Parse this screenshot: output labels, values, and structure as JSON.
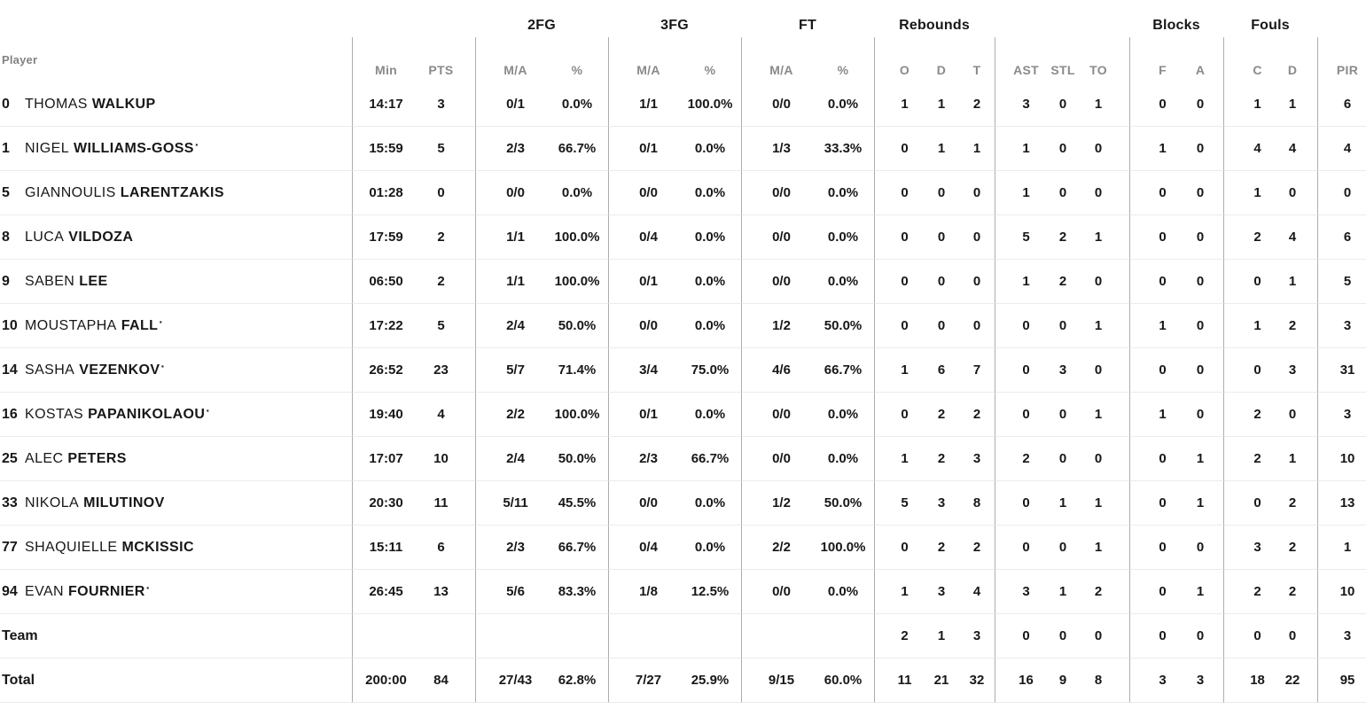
{
  "colors": {
    "text": "#171717",
    "muted_header": "#8a8a8a",
    "column_line": "#adadad",
    "row_divider": "#ebebeb",
    "background": "#ffffff"
  },
  "table": {
    "player_header": "Player",
    "starter_mark": "·",
    "group_headers": [
      "2FG",
      "3FG",
      "FT",
      "Rebounds",
      "Blocks",
      "Fouls"
    ],
    "sub_headers": [
      "Min",
      "PTS",
      "M/A",
      "%",
      "M/A",
      "%",
      "M/A",
      "%",
      "O",
      "D",
      "T",
      "AST",
      "STL",
      "TO",
      "F",
      "A",
      "C",
      "D",
      "PIR"
    ],
    "rows": [
      {
        "type": "player",
        "number": "0",
        "first": "THOMAS",
        "last": "WALKUP",
        "starter": false,
        "stats": [
          "14:17",
          "3",
          "0/1",
          "0.0%",
          "1/1",
          "100.0%",
          "0/0",
          "0.0%",
          "1",
          "1",
          "2",
          "3",
          "0",
          "1",
          "0",
          "0",
          "1",
          "1",
          "6"
        ]
      },
      {
        "type": "player",
        "number": "1",
        "first": "NIGEL",
        "last": "WILLIAMS-GOSS",
        "starter": true,
        "stats": [
          "15:59",
          "5",
          "2/3",
          "66.7%",
          "0/1",
          "0.0%",
          "1/3",
          "33.3%",
          "0",
          "1",
          "1",
          "1",
          "0",
          "0",
          "1",
          "0",
          "4",
          "4",
          "4"
        ]
      },
      {
        "type": "player",
        "number": "5",
        "first": "GIANNOULIS",
        "last": "LARENTZAKIS",
        "starter": false,
        "stats": [
          "01:28",
          "0",
          "0/0",
          "0.0%",
          "0/0",
          "0.0%",
          "0/0",
          "0.0%",
          "0",
          "0",
          "0",
          "1",
          "0",
          "0",
          "0",
          "0",
          "1",
          "0",
          "0"
        ]
      },
      {
        "type": "player",
        "number": "8",
        "first": "LUCA",
        "last": "VILDOZA",
        "starter": false,
        "stats": [
          "17:59",
          "2",
          "1/1",
          "100.0%",
          "0/4",
          "0.0%",
          "0/0",
          "0.0%",
          "0",
          "0",
          "0",
          "5",
          "2",
          "1",
          "0",
          "0",
          "2",
          "4",
          "6"
        ]
      },
      {
        "type": "player",
        "number": "9",
        "first": "SABEN",
        "last": "LEE",
        "starter": false,
        "stats": [
          "06:50",
          "2",
          "1/1",
          "100.0%",
          "0/1",
          "0.0%",
          "0/0",
          "0.0%",
          "0",
          "0",
          "0",
          "1",
          "2",
          "0",
          "0",
          "0",
          "0",
          "1",
          "5"
        ]
      },
      {
        "type": "player",
        "number": "10",
        "first": "MOUSTAPHA",
        "last": "FALL",
        "starter": true,
        "stats": [
          "17:22",
          "5",
          "2/4",
          "50.0%",
          "0/0",
          "0.0%",
          "1/2",
          "50.0%",
          "0",
          "0",
          "0",
          "0",
          "0",
          "1",
          "1",
          "0",
          "1",
          "2",
          "3"
        ]
      },
      {
        "type": "player",
        "number": "14",
        "first": "SASHA",
        "last": "VEZENKOV",
        "starter": true,
        "stats": [
          "26:52",
          "23",
          "5/7",
          "71.4%",
          "3/4",
          "75.0%",
          "4/6",
          "66.7%",
          "1",
          "6",
          "7",
          "0",
          "3",
          "0",
          "0",
          "0",
          "0",
          "3",
          "31"
        ]
      },
      {
        "type": "player",
        "number": "16",
        "first": "KOSTAS",
        "last": "PAPANIKOLAOU",
        "starter": true,
        "stats": [
          "19:40",
          "4",
          "2/2",
          "100.0%",
          "0/1",
          "0.0%",
          "0/0",
          "0.0%",
          "0",
          "2",
          "2",
          "0",
          "0",
          "1",
          "1",
          "0",
          "2",
          "0",
          "3"
        ]
      },
      {
        "type": "player",
        "number": "25",
        "first": "ALEC",
        "last": "PETERS",
        "starter": false,
        "stats": [
          "17:07",
          "10",
          "2/4",
          "50.0%",
          "2/3",
          "66.7%",
          "0/0",
          "0.0%",
          "1",
          "2",
          "3",
          "2",
          "0",
          "0",
          "0",
          "1",
          "2",
          "1",
          "10"
        ]
      },
      {
        "type": "player",
        "number": "33",
        "first": "NIKOLA",
        "last": "MILUTINOV",
        "starter": false,
        "stats": [
          "20:30",
          "11",
          "5/11",
          "45.5%",
          "0/0",
          "0.0%",
          "1/2",
          "50.0%",
          "5",
          "3",
          "8",
          "0",
          "1",
          "1",
          "0",
          "1",
          "0",
          "2",
          "13"
        ]
      },
      {
        "type": "player",
        "number": "77",
        "first": "SHAQUIELLE",
        "last": "MCKISSIC",
        "starter": false,
        "stats": [
          "15:11",
          "6",
          "2/3",
          "66.7%",
          "0/4",
          "0.0%",
          "2/2",
          "100.0%",
          "0",
          "2",
          "2",
          "0",
          "0",
          "1",
          "0",
          "0",
          "3",
          "2",
          "1"
        ]
      },
      {
        "type": "player",
        "number": "94",
        "first": "EVAN",
        "last": "FOURNIER",
        "starter": true,
        "stats": [
          "26:45",
          "13",
          "5/6",
          "83.3%",
          "1/8",
          "12.5%",
          "0/0",
          "0.0%",
          "1",
          "3",
          "4",
          "3",
          "1",
          "2",
          "0",
          "1",
          "2",
          "2",
          "10"
        ]
      },
      {
        "type": "team",
        "label": "Team",
        "stats": [
          "",
          "",
          "",
          "",
          "",
          "",
          "",
          "",
          "2",
          "1",
          "3",
          "0",
          "0",
          "0",
          "0",
          "0",
          "0",
          "0",
          "3"
        ]
      },
      {
        "type": "total",
        "label": "Total",
        "stats": [
          "200:00",
          "84",
          "27/43",
          "62.8%",
          "7/27",
          "25.9%",
          "9/15",
          "60.0%",
          "11",
          "21",
          "32",
          "16",
          "9",
          "8",
          "3",
          "3",
          "18",
          "22",
          "95"
        ]
      }
    ]
  }
}
